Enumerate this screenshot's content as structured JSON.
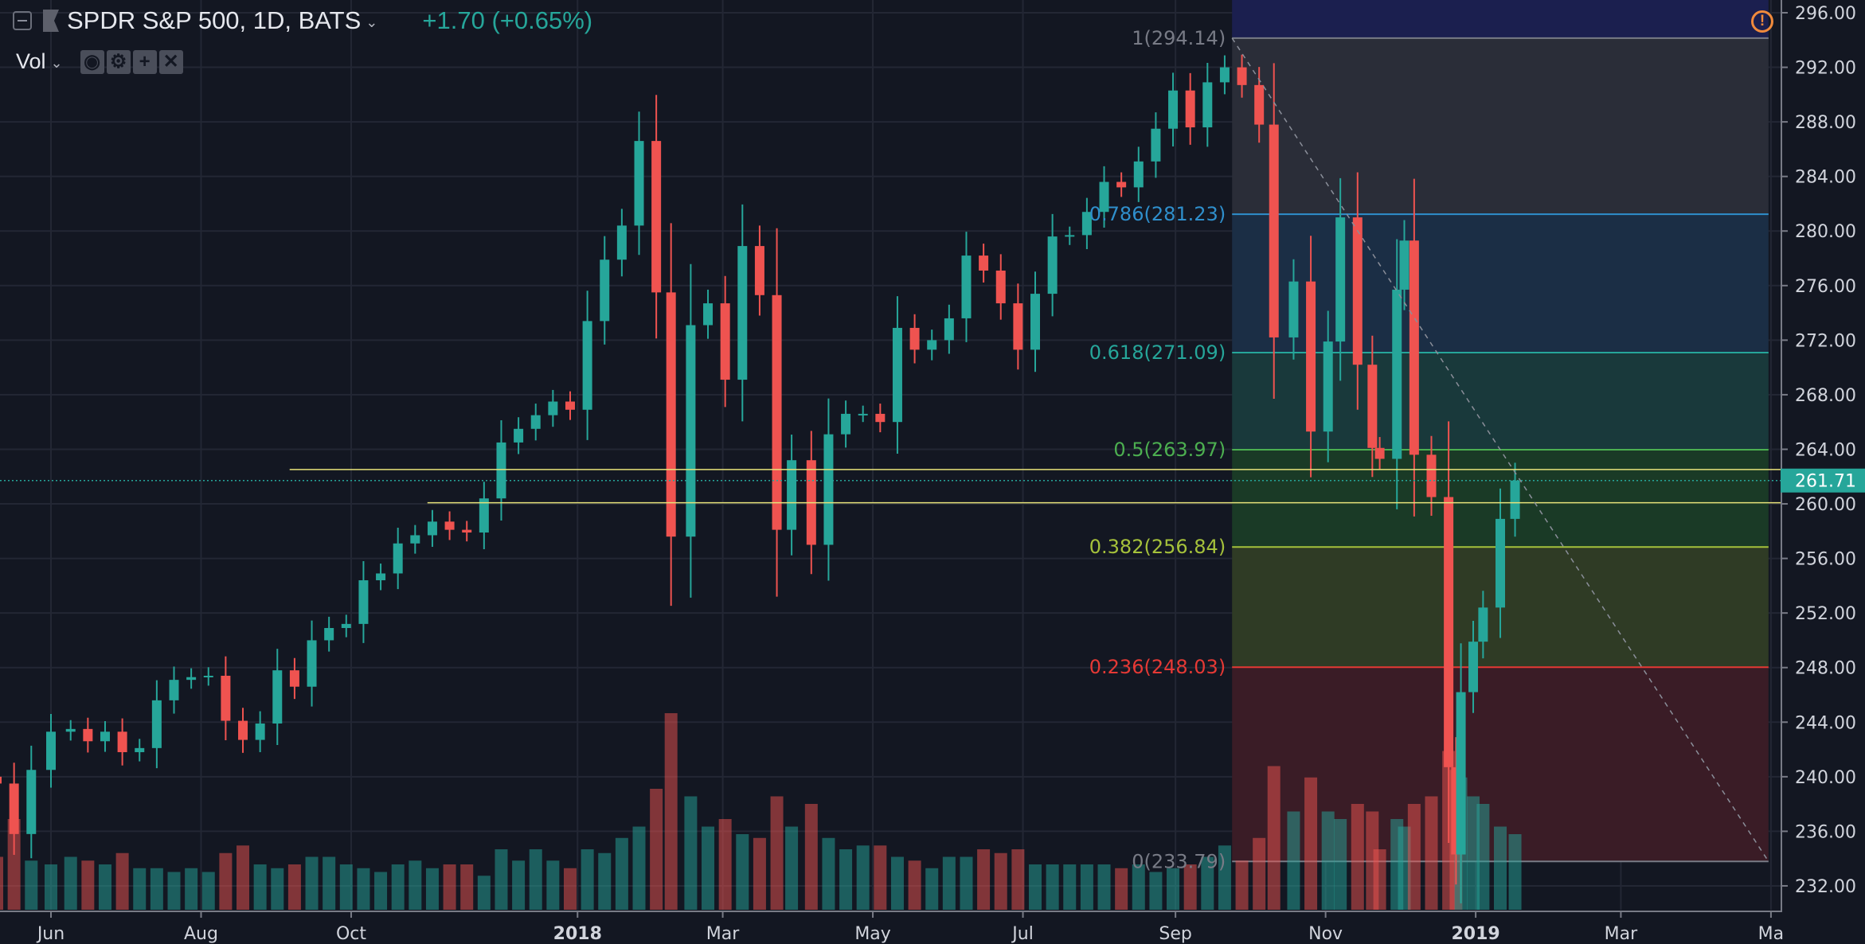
{
  "header": {
    "symbol_title": "SPDR S&P 500, 1D, BATS",
    "change": "+1.70 (+0.65%)",
    "indicator": "Vol",
    "indicator_buttons": [
      "eye-icon",
      "gear-icon",
      "plus-icon",
      "close-icon"
    ],
    "alert_icon": "exclamation-circle-icon"
  },
  "colors": {
    "background": "#131722",
    "up": "#26a69a",
    "down": "#ef5350",
    "grid": "#232734",
    "last_price": "#26a69a",
    "alert": "#f08a3c"
  },
  "chart_data": {
    "type": "candlestick",
    "title": "SPDR S&P 500, 1D, BATS",
    "ylim": [
      230.5,
      296.5
    ],
    "y_ticks": [
      "296.00",
      "292.00",
      "288.00",
      "284.00",
      "280.00",
      "276.00",
      "272.00",
      "268.00",
      "264.00",
      "260.00",
      "256.00",
      "252.00",
      "248.00",
      "244.00",
      "240.00",
      "236.00",
      "232.00"
    ],
    "x_ticks": [
      {
        "label": "Jun",
        "date": "2017-06-01"
      },
      {
        "label": "Aug",
        "date": "2017-08-01"
      },
      {
        "label": "Oct",
        "date": "2017-10-01"
      },
      {
        "label": "2018",
        "date": "2018-01-01",
        "bold": true
      },
      {
        "label": "Mar",
        "date": "2018-03-01"
      },
      {
        "label": "May",
        "date": "2018-05-01"
      },
      {
        "label": "Jul",
        "date": "2018-07-01"
      },
      {
        "label": "Sep",
        "date": "2018-09-01"
      },
      {
        "label": "Nov",
        "date": "2018-11-01"
      },
      {
        "label": "2019",
        "date": "2019-01-01",
        "bold": true
      },
      {
        "label": "Mar",
        "date": "2019-03-01"
      },
      {
        "label": "Ma",
        "date": "2019-05-01"
      }
    ],
    "grid": true,
    "last_price": "261.71",
    "dates": [
      "2017-05-10",
      "2017-05-17",
      "2017-05-24",
      "2017-06-01",
      "2017-06-09",
      "2017-06-16",
      "2017-06-23",
      "2017-06-30",
      "2017-07-07",
      "2017-07-14",
      "2017-07-21",
      "2017-07-28",
      "2017-08-04",
      "2017-08-11",
      "2017-08-18",
      "2017-08-25",
      "2017-09-01",
      "2017-09-08",
      "2017-09-15",
      "2017-09-22",
      "2017-09-29",
      "2017-10-06",
      "2017-10-13",
      "2017-10-20",
      "2017-10-27",
      "2017-11-03",
      "2017-11-10",
      "2017-11-17",
      "2017-11-24",
      "2017-12-01",
      "2017-12-08",
      "2017-12-15",
      "2017-12-22",
      "2017-12-29",
      "2018-01-05",
      "2018-01-12",
      "2018-01-19",
      "2018-01-26",
      "2018-02-02",
      "2018-02-08",
      "2018-02-16",
      "2018-02-23",
      "2018-03-02",
      "2018-03-09",
      "2018-03-16",
      "2018-03-23",
      "2018-03-29",
      "2018-04-06",
      "2018-04-13",
      "2018-04-20",
      "2018-04-27",
      "2018-05-04",
      "2018-05-11",
      "2018-05-18",
      "2018-05-25",
      "2018-06-01",
      "2018-06-08",
      "2018-06-15",
      "2018-06-22",
      "2018-06-29",
      "2018-07-06",
      "2018-07-13",
      "2018-07-20",
      "2018-07-27",
      "2018-08-03",
      "2018-08-10",
      "2018-08-17",
      "2018-08-24",
      "2018-08-31",
      "2018-09-07",
      "2018-09-14",
      "2018-09-21",
      "2018-09-28",
      "2018-10-05",
      "2018-10-11",
      "2018-10-19",
      "2018-10-26",
      "2018-11-02",
      "2018-11-07",
      "2018-11-14",
      "2018-11-20",
      "2018-11-23",
      "2018-11-30",
      "2018-12-03",
      "2018-12-07",
      "2018-12-14",
      "2018-12-21",
      "2018-12-24",
      "2018-12-26",
      "2018-12-31",
      "2019-01-04",
      "2019-01-11",
      "2019-01-17"
    ],
    "close": [
      239.5,
      235.8,
      240.5,
      243.3,
      243.5,
      242.6,
      243.3,
      241.8,
      242.1,
      245.6,
      247.1,
      247.3,
      247.4,
      244.1,
      242.7,
      243.9,
      247.8,
      246.6,
      250.0,
      250.9,
      251.2,
      254.4,
      254.9,
      257.1,
      257.7,
      258.7,
      258.1,
      257.9,
      260.4,
      264.5,
      265.5,
      266.5,
      267.5,
      266.9,
      273.4,
      277.9,
      280.4,
      286.6,
      275.5,
      257.6,
      273.1,
      274.7,
      269.1,
      278.9,
      275.3,
      258.1,
      263.2,
      257.0,
      265.1,
      266.6,
      266.6,
      266.0,
      272.9,
      271.3,
      272.0,
      273.6,
      278.2,
      277.1,
      274.7,
      271.3,
      275.4,
      279.6,
      279.7,
      281.4,
      283.6,
      283.2,
      285.1,
      287.5,
      290.3,
      287.6,
      290.9,
      292.0,
      290.7,
      287.8,
      272.2,
      276.3,
      265.3,
      271.9,
      281.0,
      270.2,
      264.1,
      263.3,
      275.7,
      279.3,
      263.6,
      260.5,
      240.7,
      234.3,
      246.2,
      249.9,
      252.4,
      258.9,
      261.71
    ],
    "volume_millions": [
      70,
      120,
      65,
      60,
      70,
      65,
      60,
      75,
      55,
      55,
      50,
      55,
      50,
      75,
      85,
      60,
      55,
      60,
      70,
      70,
      60,
      55,
      50,
      60,
      65,
      55,
      60,
      60,
      45,
      80,
      65,
      80,
      65,
      55,
      80,
      75,
      95,
      110,
      160,
      260,
      150,
      110,
      120,
      100,
      95,
      150,
      110,
      140,
      95,
      80,
      85,
      85,
      70,
      65,
      55,
      70,
      70,
      80,
      75,
      80,
      60,
      60,
      60,
      60,
      60,
      55,
      60,
      50,
      55,
      60,
      70,
      85,
      65,
      95,
      190,
      130,
      175,
      130,
      120,
      140,
      130,
      80,
      120,
      110,
      140,
      150,
      210,
      185,
      175,
      150,
      140,
      110,
      100
    ],
    "fibonacci": {
      "levels": [
        {
          "ratio": "1",
          "price": 294.14,
          "label": "1(294.14)",
          "color": "#787b86",
          "fill": "#2a2d38"
        },
        {
          "ratio": "0.786",
          "price": 281.23,
          "label": "0.786(281.23)",
          "color": "#2f8fcc",
          "fill": "#1b2e45"
        },
        {
          "ratio": "0.618",
          "price": 271.09,
          "label": "0.618(271.09)",
          "color": "#26a69a",
          "fill": "#19393b"
        },
        {
          "ratio": "0.5",
          "price": 263.97,
          "label": "0.5(263.97)",
          "color": "#4caf50",
          "fill": "#1a3a26"
        },
        {
          "ratio": "0.382",
          "price": 256.84,
          "label": "0.382(256.84)",
          "color": "#a5c13b",
          "fill": "#2f3b25"
        },
        {
          "ratio": "0.236",
          "price": 248.03,
          "label": "0.236(248.03)",
          "color": "#e53935",
          "fill": "#3a1c26"
        },
        {
          "ratio": "0",
          "price": 233.79,
          "label": "0(233.79)",
          "color": "#787b86",
          "fill": null
        }
      ],
      "extension_fill": "#1b1f4f",
      "start_date": "2018-09-24",
      "end_date": "2019-04-30"
    },
    "horizontal_lines": [
      {
        "price": 262.52,
        "from_date": "2017-09-06",
        "color": "#e8e37a"
      },
      {
        "price": 260.08,
        "from_date": "2017-11-01",
        "color": "#e8e37a"
      }
    ],
    "trend_line": {
      "from": {
        "date": "2018-09-24",
        "price": 294.14
      },
      "to": {
        "date": "2019-04-30",
        "price": 233.79
      },
      "style": "dashed",
      "color": "#8a8e99"
    }
  }
}
